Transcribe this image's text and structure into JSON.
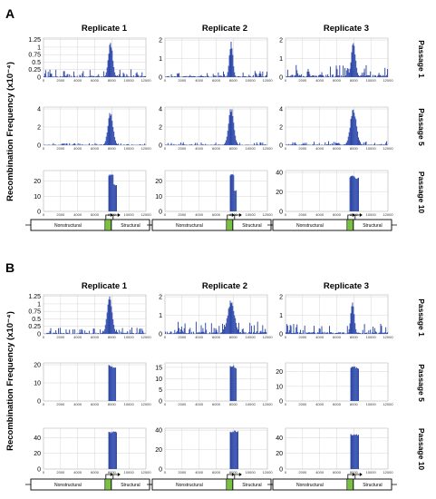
{
  "y_axis_label": "Recombination Frequency (x10⁻⁴)",
  "genome_labels": {
    "nonstructural": "Nonstructural",
    "structural": "Structural"
  },
  "colors": {
    "bar": "#2b46a8",
    "structural_box": "#7ac143",
    "grid": "#cccccc"
  },
  "chart_data": [
    {
      "panel": "A",
      "replicates": [
        "Replicate 1",
        "Replicate 2",
        "Replicate 3"
      ],
      "passages": [
        "Passage 1",
        "Passage 5",
        "Passage 10"
      ],
      "type": "area",
      "x_ticks": [
        0,
        2000,
        4000,
        6000,
        8000,
        10000,
        12000
      ],
      "xlim": [
        0,
        12000
      ],
      "rows": [
        {
          "passage": "Passage 1",
          "charts": [
            {
              "ylim": [
                0,
                1.3
              ],
              "yticks": [
                0,
                0.25,
                0.5,
                0.75,
                1,
                1.25
              ],
              "peak_x": 7800,
              "peak": 1.25,
              "base": 0.12,
              "width": 250
            },
            {
              "ylim": [
                0,
                2.1
              ],
              "yticks": [
                0,
                1,
                2
              ],
              "peak_x": 7700,
              "peak": 2.0,
              "base": 0.15,
              "width": 200
            },
            {
              "ylim": [
                0,
                2.1
              ],
              "yticks": [
                0,
                1,
                2
              ],
              "peak_x": 7900,
              "peak": 1.9,
              "base": 0.3,
              "width": 250
            }
          ]
        },
        {
          "passage": "Passage 5",
          "charts": [
            {
              "ylim": [
                0,
                4.2
              ],
              "yticks": [
                0,
                2,
                4
              ],
              "peak_x": 7800,
              "peak": 3.8,
              "base": 0.1,
              "width": 300
            },
            {
              "ylim": [
                0,
                4.2
              ],
              "yticks": [
                0,
                2,
                4
              ],
              "peak_x": 7700,
              "peak": 4.3,
              "base": 0.15,
              "width": 300
            },
            {
              "ylim": [
                0,
                4.2
              ],
              "yticks": [
                0,
                2,
                4
              ],
              "peak_x": 7900,
              "peak": 4.3,
              "base": 0.2,
              "width": 350
            }
          ]
        },
        {
          "passage": "Passage 10",
          "charts": [
            {
              "ylim": [
                0,
                27
              ],
              "yticks": [
                0,
                10,
                20
              ],
              "plateau": [
                7600,
                8500
              ],
              "peak": 25,
              "shoulder": 18,
              "base": 0.05
            },
            {
              "ylim": [
                0,
                27
              ],
              "yticks": [
                0,
                10,
                20
              ],
              "plateau": [
                7600,
                8300
              ],
              "peak": 25,
              "shoulder": 14,
              "base": 0.05
            },
            {
              "ylim": [
                0,
                42
              ],
              "yticks": [
                0,
                20,
                40
              ],
              "plateau": [
                7500,
                8500
              ],
              "peak": 37,
              "shoulder": 35,
              "base": 0.05
            }
          ]
        }
      ]
    },
    {
      "panel": "B",
      "replicates": [
        "Replicate 1",
        "Replicate 2",
        "Replicate 3"
      ],
      "passages": [
        "Passage 1",
        "Passage 5",
        "Passage 10"
      ],
      "type": "area",
      "x_ticks": [
        0,
        2000,
        4000,
        6000,
        8000,
        10000,
        12000
      ],
      "xlim": [
        0,
        12000
      ],
      "rows": [
        {
          "passage": "Passage 1",
          "charts": [
            {
              "ylim": [
                0,
                1.3
              ],
              "yticks": [
                0,
                0.25,
                0.5,
                0.75,
                1,
                1.25
              ],
              "peak_x": 7700,
              "peak": 1.25,
              "base": 0.1,
              "width": 300
            },
            {
              "ylim": [
                0,
                2.1
              ],
              "yticks": [
                0,
                1,
                2
              ],
              "peak_x": 7700,
              "peak": 1.9,
              "base": 0.3,
              "width": 400
            },
            {
              "ylim": [
                0,
                2.1
              ],
              "yticks": [
                0,
                1,
                2
              ],
              "peak_x": 7800,
              "peak": 1.9,
              "base": 0.25,
              "width": 200
            }
          ]
        },
        {
          "passage": "Passage 5",
          "charts": [
            {
              "ylim": [
                0,
                21
              ],
              "yticks": [
                0,
                10,
                20
              ],
              "plateau": [
                7600,
                8400
              ],
              "peak": 20,
              "shoulder": 19,
              "base": 0.05
            },
            {
              "ylim": [
                0,
                17
              ],
              "yticks": [
                0,
                5,
                10,
                15
              ],
              "plateau": [
                7600,
                8300
              ],
              "peak": 16,
              "shoulder": 15,
              "base": 0.05
            },
            {
              "ylim": [
                0,
                26
              ],
              "yticks": [
                0,
                10,
                20
              ],
              "plateau": [
                7600,
                8500
              ],
              "peak": 24,
              "shoulder": 23,
              "base": 0.05
            }
          ]
        },
        {
          "passage": "Passage 10",
          "charts": [
            {
              "ylim": [
                0,
                52
              ],
              "yticks": [
                0,
                20,
                40
              ],
              "plateau": [
                7600,
                8500
              ],
              "peak": 48,
              "shoulder": 48,
              "base": 0.05
            },
            {
              "ylim": [
                0,
                42
              ],
              "yticks": [
                0,
                20,
                40
              ],
              "plateau": [
                7600,
                8500
              ],
              "peak": 40,
              "shoulder": 40,
              "base": 0.05
            },
            {
              "ylim": [
                0,
                52
              ],
              "yticks": [
                0,
                20,
                40
              ],
              "plateau": [
                7600,
                8500
              ],
              "peak": 45,
              "shoulder": 45,
              "base": 0.05
            }
          ]
        }
      ]
    }
  ]
}
